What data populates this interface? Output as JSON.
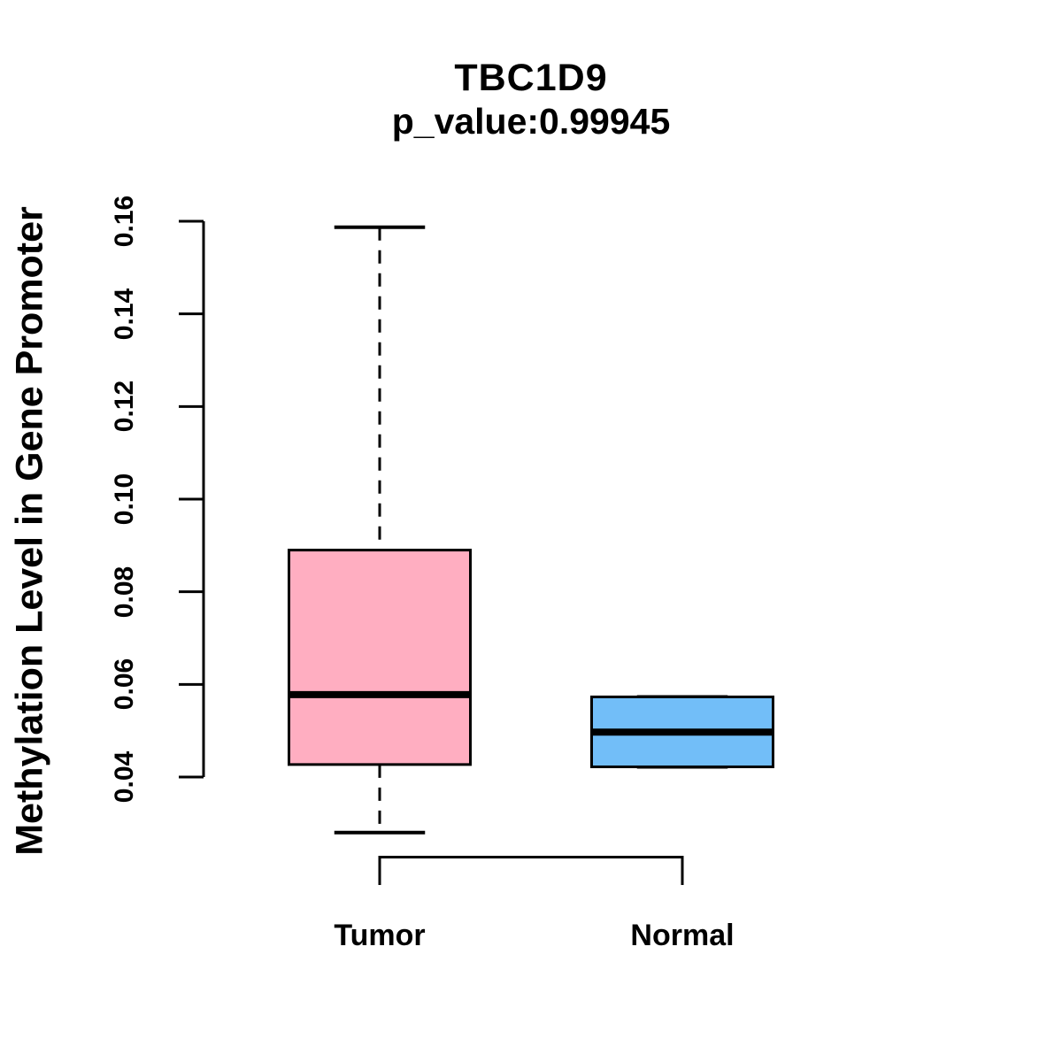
{
  "chart_data": {
    "type": "boxplot",
    "title": "TBC1D9",
    "subtitle": "p_value:0.99945",
    "ylabel": "Methylation Level in Gene Promoter",
    "xlabel": "",
    "categories": [
      "Tumor",
      "Normal"
    ],
    "ylim": [
      0.04,
      0.16
    ],
    "ytick_labels": [
      "0.04",
      "0.06",
      "0.08",
      "0.10",
      "0.12",
      "0.14",
      "0.16"
    ],
    "grid": false,
    "legend": "none",
    "series": [
      {
        "name": "Tumor",
        "fill_color": "#FFAEC1",
        "box_values": {
          "lower_whisker": 0.028,
          "q1": 0.0427,
          "median": 0.0578,
          "q3": 0.089,
          "upper_whisker": 0.1587
        }
      },
      {
        "name": "Normal",
        "fill_color": "#72BEF8",
        "box_values": {
          "lower_whisker": 0.0422,
          "q1": 0.0422,
          "median": 0.0497,
          "q3": 0.0573,
          "upper_whisker": 0.0573
        }
      }
    ],
    "colors": {
      "box_border": "#000000",
      "median_line": "#000000",
      "axis": "#000000",
      "background": "#FFFFFF"
    },
    "whisker_style": "dashed"
  }
}
